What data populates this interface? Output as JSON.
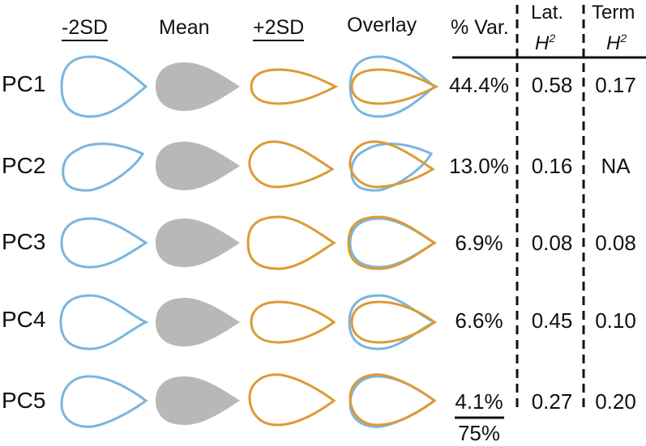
{
  "headers": {
    "minus": "-2SD",
    "mean": "Mean",
    "plus": "+2SD",
    "overlay": "Overlay",
    "pct_var": "% Var.",
    "lat": "Lat.",
    "lat_h": "H",
    "lat_h_sup": "2",
    "term": "Term",
    "term_h": "H",
    "term_h_sup": "2"
  },
  "rows": [
    {
      "label": "PC1",
      "pct_var": "44.4%",
      "lat_h2": "0.58",
      "term_h2": "0.17"
    },
    {
      "label": "PC2",
      "pct_var": "13.0%",
      "lat_h2": "0.16",
      "term_h2": "NA"
    },
    {
      "label": "PC3",
      "pct_var": "6.9%",
      "lat_h2": "0.08",
      "term_h2": "0.08"
    },
    {
      "label": "PC4",
      "pct_var": "6.6%",
      "lat_h2": "0.45",
      "term_h2": "0.10"
    },
    {
      "label": "PC5",
      "pct_var": "4.1%",
      "lat_h2": "0.27",
      "term_h2": "0.20"
    }
  ],
  "total_pct_var": "75%",
  "colors": {
    "minus_outline": "#79b6de",
    "mean_fill": "#b8b8b8",
    "plus_outline": "#dd9a36",
    "text": "#111111"
  }
}
